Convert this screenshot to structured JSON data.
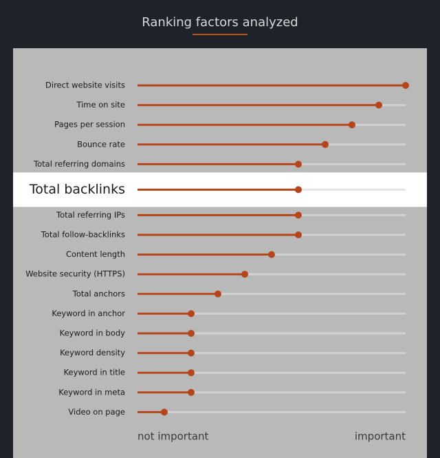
{
  "chart_data": {
    "type": "lollipop",
    "title": "Ranking factors analyzed",
    "categories": [
      "Direct website visits",
      "Time on site",
      "Pages per session",
      "Bounce rate",
      "Total referring domains",
      "Total backlinks",
      "Total referring IPs",
      "Total follow-backlinks",
      "Content length",
      "Website security (HTTPS)",
      "Total anchors",
      "Keyword in anchor",
      "Keyword in body",
      "Keyword density",
      "Keyword in title",
      "Keyword in meta",
      "Video on page"
    ],
    "values": [
      10,
      9,
      8,
      7,
      6,
      6,
      6,
      6,
      5,
      4,
      3,
      2,
      2,
      2,
      2,
      2,
      1
    ],
    "xlim": [
      0,
      10
    ],
    "x_label_low": "not important",
    "x_label_high": "important",
    "highlight": 5,
    "color": "#b5451b",
    "track_color": "#d2d2d2"
  }
}
